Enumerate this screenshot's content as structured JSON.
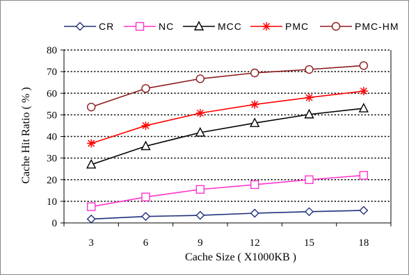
{
  "chart_data": {
    "type": "line",
    "title": "",
    "xlabel": "Cache Size ( X1000KB )",
    "ylabel": "Cache Hit Ratio ( % )",
    "x": [
      3,
      6,
      9,
      12,
      15,
      18
    ],
    "ylim": [
      0,
      80
    ],
    "yticks": [
      0,
      10,
      20,
      30,
      40,
      50,
      60,
      70,
      80
    ],
    "grid": "horizontal dotted",
    "legend_position": "top",
    "series": [
      {
        "name": "CR",
        "color": "#1f2f7a",
        "marker": "diamond",
        "values": [
          1.8,
          3.0,
          3.5,
          4.5,
          5.2,
          5.8
        ]
      },
      {
        "name": "NC",
        "color": "#ff33cc",
        "marker": "square",
        "values": [
          7.5,
          12.0,
          15.5,
          17.7,
          20.0,
          22.0
        ]
      },
      {
        "name": "MCC",
        "color": "#000000",
        "marker": "triangle",
        "values": [
          27.0,
          35.5,
          41.8,
          46.2,
          50.2,
          53.0
        ]
      },
      {
        "name": "PMC",
        "color": "#ff0000",
        "marker": "asterisk",
        "values": [
          36.8,
          45.0,
          50.8,
          54.8,
          58.0,
          61.0
        ]
      },
      {
        "name": "PMC-HM",
        "color": "#8b1a1a",
        "marker": "circle",
        "values": [
          53.6,
          62.2,
          66.7,
          69.4,
          71.0,
          72.8
        ]
      }
    ]
  }
}
